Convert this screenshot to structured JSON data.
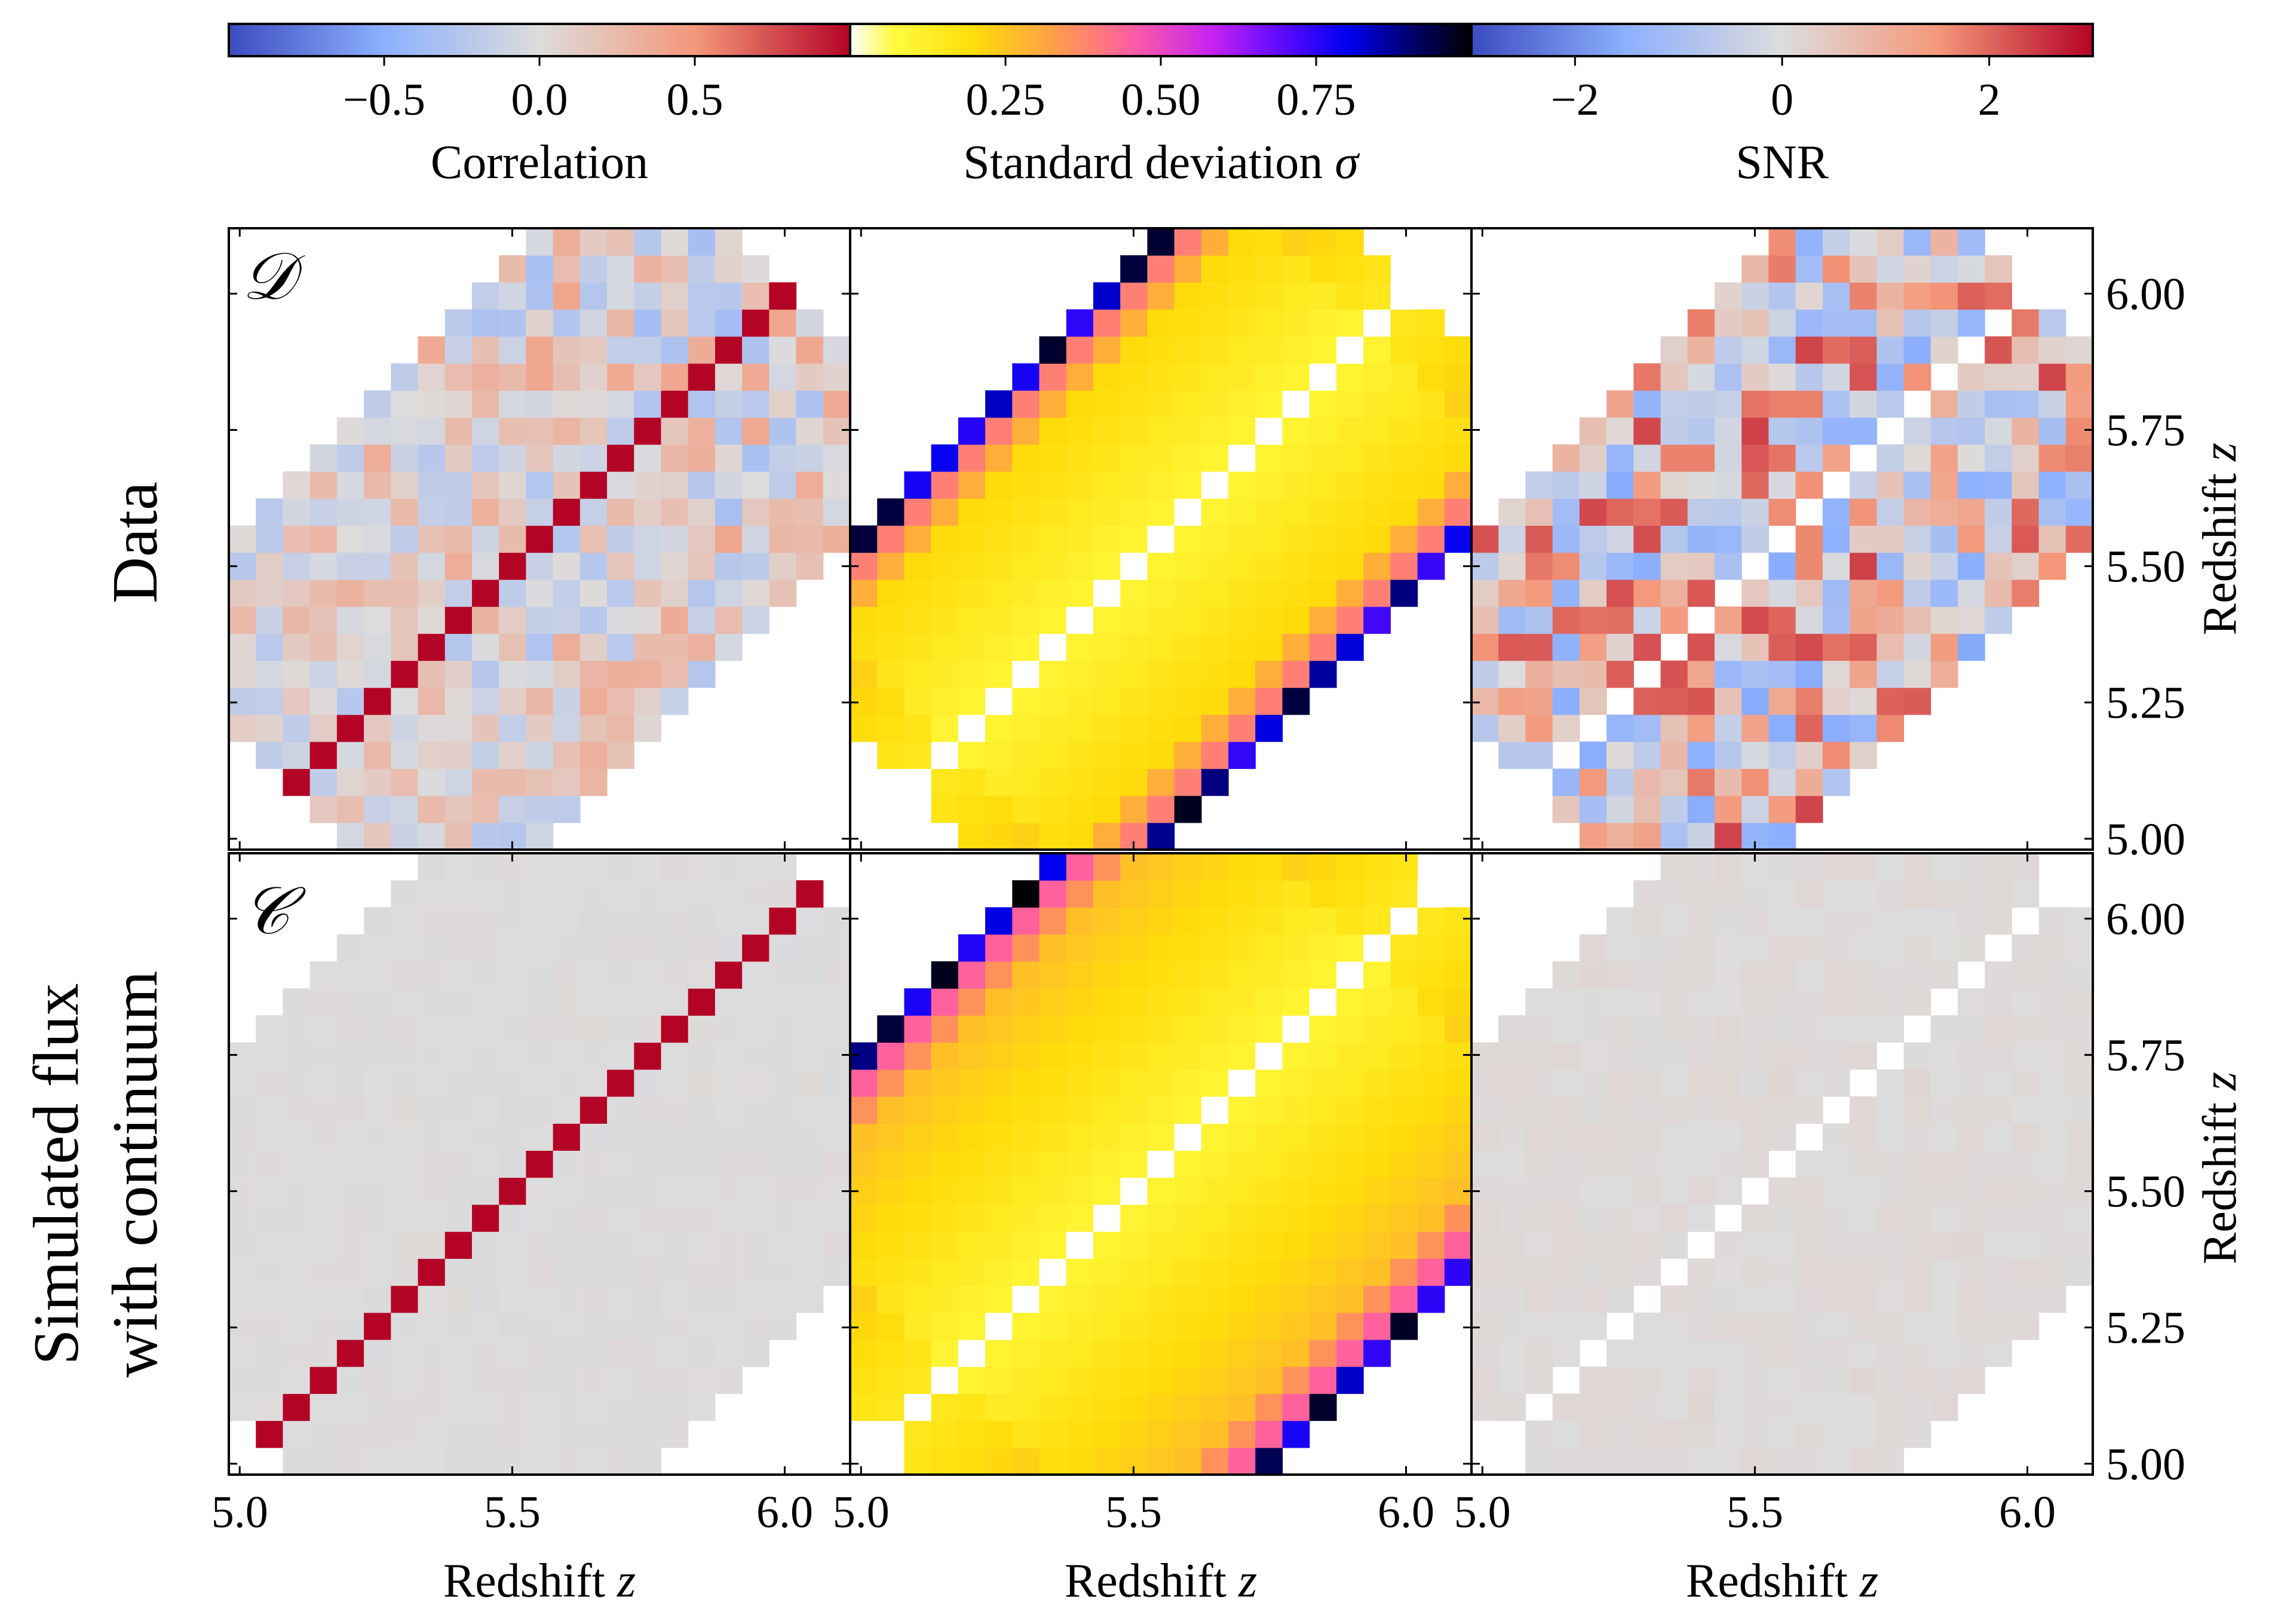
{
  "colorbars": [
    {
      "label": "Correlation",
      "ticks": [
        "−0.5",
        "0.0",
        "0.5"
      ],
      "tick_values": [
        -0.5,
        0.0,
        0.5
      ],
      "range": [
        -1.0,
        1.0
      ],
      "colormap": "coolwarm"
    },
    {
      "label": "Standard deviation ",
      "label_symbol": "σ",
      "ticks": [
        "0.25",
        "0.50",
        "0.75"
      ],
      "tick_values": [
        0.25,
        0.5,
        0.75
      ],
      "range": [
        0.0,
        1.0
      ],
      "colormap": "gnuplot2_r"
    },
    {
      "label": "SNR",
      "ticks": [
        "−2",
        "0",
        "2"
      ],
      "tick_values": [
        -2,
        0,
        2
      ],
      "range": [
        -3.0,
        3.0
      ],
      "colormap": "coolwarm"
    }
  ],
  "rows": [
    {
      "label_lines": [
        "Data"
      ],
      "matrix_symbol": "𝒟"
    },
    {
      "label_lines": [
        "Simulated flux",
        "with continuum"
      ],
      "matrix_symbol": "𝒞"
    }
  ],
  "axes": {
    "xlabel": "Redshift ",
    "ylabel": "Redshift ",
    "label_var": "z",
    "x_ticks": [
      "5.0",
      "5.5",
      "6.0"
    ],
    "x_tick_values": [
      5.0,
      5.5,
      6.0
    ],
    "y_ticks": [
      "5.00",
      "5.25",
      "5.50",
      "5.75",
      "6.00"
    ],
    "y_tick_values": [
      5.0,
      5.25,
      5.5,
      5.75,
      6.0
    ],
    "range": [
      4.98,
      6.12
    ]
  },
  "chart_data": [
    {
      "type": "heatmap",
      "panel": "data-correlation",
      "row": "Data",
      "colorbar": "Correlation",
      "x_range": [
        4.98,
        6.12
      ],
      "y_range": [
        4.98,
        6.12
      ],
      "n_bins": 23,
      "diagonal": 1.0
    },
    {
      "type": "heatmap",
      "panel": "data-std",
      "row": "Data",
      "colorbar": "Standard deviation",
      "x_range": [
        4.98,
        6.12
      ],
      "y_range": [
        4.98,
        6.12
      ],
      "n_bins": 23
    },
    {
      "type": "heatmap",
      "panel": "data-snr",
      "row": "Data",
      "colorbar": "SNR",
      "x_range": [
        4.98,
        6.12
      ],
      "y_range": [
        4.98,
        6.12
      ],
      "n_bins": 23
    },
    {
      "type": "heatmap",
      "panel": "sim-correlation",
      "row": "Simulated flux with continuum",
      "colorbar": "Correlation",
      "x_range": [
        4.98,
        6.12
      ],
      "y_range": [
        4.98,
        6.12
      ],
      "n_bins": 23,
      "diagonal": 1.0
    },
    {
      "type": "heatmap",
      "panel": "sim-std",
      "row": "Simulated flux with continuum",
      "colorbar": "Standard deviation",
      "x_range": [
        4.98,
        6.12
      ],
      "y_range": [
        4.98,
        6.12
      ],
      "n_bins": 23
    },
    {
      "type": "heatmap",
      "panel": "sim-snr",
      "row": "Simulated flux with continuum",
      "colorbar": "SNR",
      "x_range": [
        4.98,
        6.12
      ],
      "y_range": [
        4.98,
        6.12
      ],
      "n_bins": 23
    }
  ]
}
